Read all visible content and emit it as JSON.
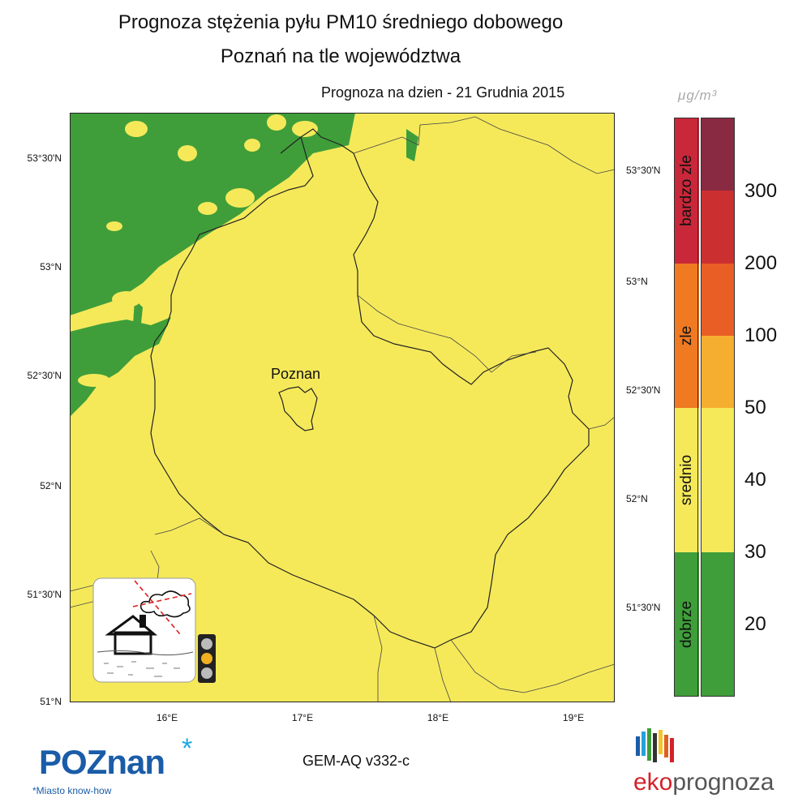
{
  "title": {
    "line1": "Prognoza stężenia pyłu PM10 średniego dobowego",
    "line2": "Poznań na tle województwa",
    "forecast_date": "Prognoza na dzien -  21 Grudnia 2015"
  },
  "map": {
    "city_label": "Poznan",
    "lat_labels_left": [
      "53°30'N",
      "53°N",
      "52°30'N",
      "52°N",
      "51°30'N",
      "51°N"
    ],
    "lat_labels_right": [
      "53°30'N",
      "53°N",
      "52°30'N",
      "52°N",
      "51°30'N"
    ],
    "lon_labels": [
      "16°E",
      "17°E",
      "18°E",
      "19°E"
    ],
    "colors": {
      "background": "#f5e95a",
      "clean": "#3f9e3a",
      "border": "#222222"
    }
  },
  "legend": {
    "unit": "μg/m³",
    "categories": [
      {
        "label": "bardzo zle",
        "color": "#c8283a"
      },
      {
        "label": "zle",
        "color": "#ef7a22"
      },
      {
        "label": "srednio",
        "color": "#f5e95a"
      },
      {
        "label": "dobrze",
        "color": "#3f9e3a"
      }
    ],
    "scale_colors": [
      "#8a2a42",
      "#cc2f30",
      "#e85e25",
      "#f5ae30",
      "#f5e95a",
      "#f5e95a",
      "#3f9e3a",
      "#3f9e3a"
    ],
    "ticks": [
      "300",
      "200",
      "100",
      "50",
      "40",
      "30",
      "20"
    ]
  },
  "footer": {
    "model": "GEM-AQ v332-c",
    "poznan_logo": "POZnan",
    "poznan_star": "*",
    "poznan_tagline": "*Miasto know-how",
    "eko_part1": "eko",
    "eko_part2": "prognoza"
  }
}
